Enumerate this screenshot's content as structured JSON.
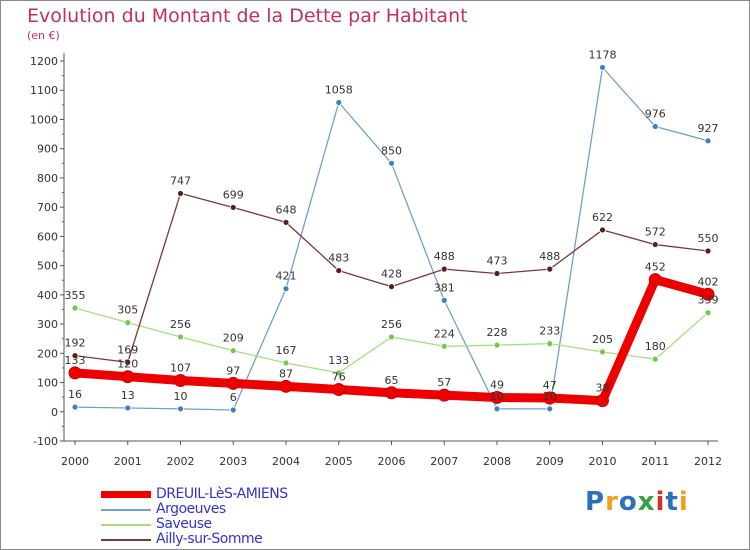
{
  "title": "Evolution du Montant de la Dette par Habitant",
  "unit_label": "(en €)",
  "logo": {
    "text": "Proxiti",
    "colors": [
      "#2c6fbd",
      "#f0a020",
      "#2c6fbd",
      "#3aa040",
      "#d0302e",
      "#2c6fbd",
      "#f0a020"
    ]
  },
  "chart_data": {
    "type": "line",
    "title": "Evolution du Montant de la Dette par Habitant",
    "ylabel": "(en €)",
    "xlabel": "",
    "x": [
      "2000",
      "2001",
      "2002",
      "2003",
      "2004",
      "2005",
      "2006",
      "2007",
      "2008",
      "2009",
      "2010",
      "2011",
      "2012"
    ],
    "ylim": [
      -100,
      1200
    ],
    "yticks": [
      "-100",
      "0",
      "100",
      "200",
      "300",
      "400",
      "500",
      "600",
      "700",
      "800",
      "900",
      "1000",
      "1100",
      "1200"
    ],
    "grid": false,
    "legend_position": "bottom-left",
    "series": [
      {
        "name": "DREUIL-LèS-AMIENS",
        "color": "#ee0000",
        "point_color": "#ee0000",
        "emphasis": true,
        "values": [
          133,
          120,
          107,
          97,
          87,
          76,
          65,
          57,
          49,
          47,
          38,
          452,
          402
        ]
      },
      {
        "name": "Argoeuves",
        "color": "#6fa0d0",
        "point_color": "#3d7fc6",
        "emphasis": false,
        "values": [
          16,
          13,
          10,
          6,
          421,
          1058,
          850,
          381,
          10,
          10,
          1178,
          976,
          927
        ]
      },
      {
        "name": "Saveuse",
        "color": "#a4e07c",
        "point_color": "#74c74c",
        "emphasis": false,
        "values": [
          355,
          305,
          256,
          209,
          167,
          133,
          256,
          224,
          228,
          233,
          205,
          180,
          339
        ]
      },
      {
        "name": "Ailly-sur-Somme",
        "color": "#7a3838",
        "point_color": "#5a1c1c",
        "emphasis": false,
        "values": [
          192,
          169,
          747,
          699,
          648,
          483,
          428,
          488,
          473,
          488,
          622,
          572,
          550
        ]
      }
    ],
    "point_labels": [
      {
        "series": 0,
        "labels": [
          "133",
          "120",
          "107",
          "97",
          "87",
          "76",
          "65",
          "57",
          "49",
          "47",
          "38",
          "452",
          "402"
        ]
      },
      {
        "series": 1,
        "labels": [
          "16",
          "13",
          "10",
          "6",
          "421",
          "1058",
          "850",
          "381",
          "10",
          "10",
          "1178",
          "976",
          "927"
        ]
      },
      {
        "series": 2,
        "labels": [
          "355",
          "305",
          "256",
          "209",
          "167",
          "133",
          "256",
          "224",
          "228",
          "233",
          "205",
          "180",
          "339"
        ]
      },
      {
        "series": 3,
        "labels": [
          "192",
          "169",
          "747",
          "699",
          "648",
          "483",
          "428",
          "488",
          "473",
          "488",
          "622",
          "572",
          "550"
        ]
      }
    ]
  }
}
